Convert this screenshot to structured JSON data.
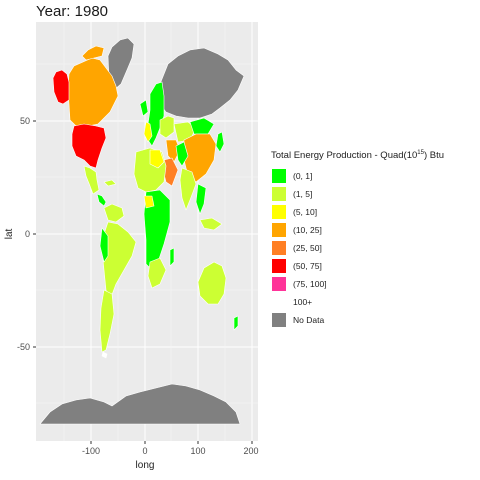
{
  "title": "Year: 1980",
  "axes": {
    "x_label": "long",
    "y_label": "lat",
    "x_ticks": [
      "-100",
      "0",
      "100",
      "200"
    ],
    "y_ticks": [
      "50",
      "0",
      "-50"
    ],
    "xlim": [
      -200,
      205
    ],
    "ylim": [
      -90,
      95
    ]
  },
  "legend": {
    "title": "Total Energy Production - Quad(10^15) Btu",
    "entries": [
      {
        "label": "(0, 1]",
        "color": "#00ff00"
      },
      {
        "label": "(1, 5]",
        "color": "#ccff33"
      },
      {
        "label": "(5, 10]",
        "color": "#ffff00"
      },
      {
        "label": "(10, 25]",
        "color": "#ffa500"
      },
      {
        "label": "(25, 50]",
        "color": "#ff7f24"
      },
      {
        "label": "(50, 75]",
        "color": "#ff0000"
      },
      {
        "label": "(75, 100]",
        "color": "#ff3399"
      },
      {
        "label": "100+",
        "color": ""
      },
      {
        "label": "No Data",
        "color": "#808080"
      }
    ]
  },
  "colors": {
    "panel_background": "#ebebeb",
    "grid_major": "#ffffff",
    "no_data": "#808080"
  },
  "regions_shown": [
    {
      "name": "Alaska",
      "category": "(50, 75]"
    },
    {
      "name": "United States",
      "category": "(50, 75]"
    },
    {
      "name": "Canada",
      "category": "(10, 25]"
    },
    {
      "name": "Greenland",
      "category": "No Data"
    },
    {
      "name": "Mexico",
      "category": "(1, 5]"
    },
    {
      "name": "Venezuela",
      "category": "(1, 5]"
    },
    {
      "name": "Brazil",
      "category": "(1, 5]"
    },
    {
      "name": "Argentina",
      "category": "(1, 5]"
    },
    {
      "name": "Russia",
      "category": "No Data"
    },
    {
      "name": "Europe",
      "category": "(0, 1]"
    },
    {
      "name": "China",
      "category": "(10, 25]"
    },
    {
      "name": "Mongolia",
      "category": "(0, 1]"
    },
    {
      "name": "Middle East",
      "category": "(10, 25]"
    },
    {
      "name": "Saudi Arabia",
      "category": "(25, 50]"
    },
    {
      "name": "Africa",
      "category": "(0, 1]"
    },
    {
      "name": "India",
      "category": "(1, 5]"
    },
    {
      "name": "Australia",
      "category": "(1, 5]"
    },
    {
      "name": "Antarctica",
      "category": "No Data"
    }
  ]
}
